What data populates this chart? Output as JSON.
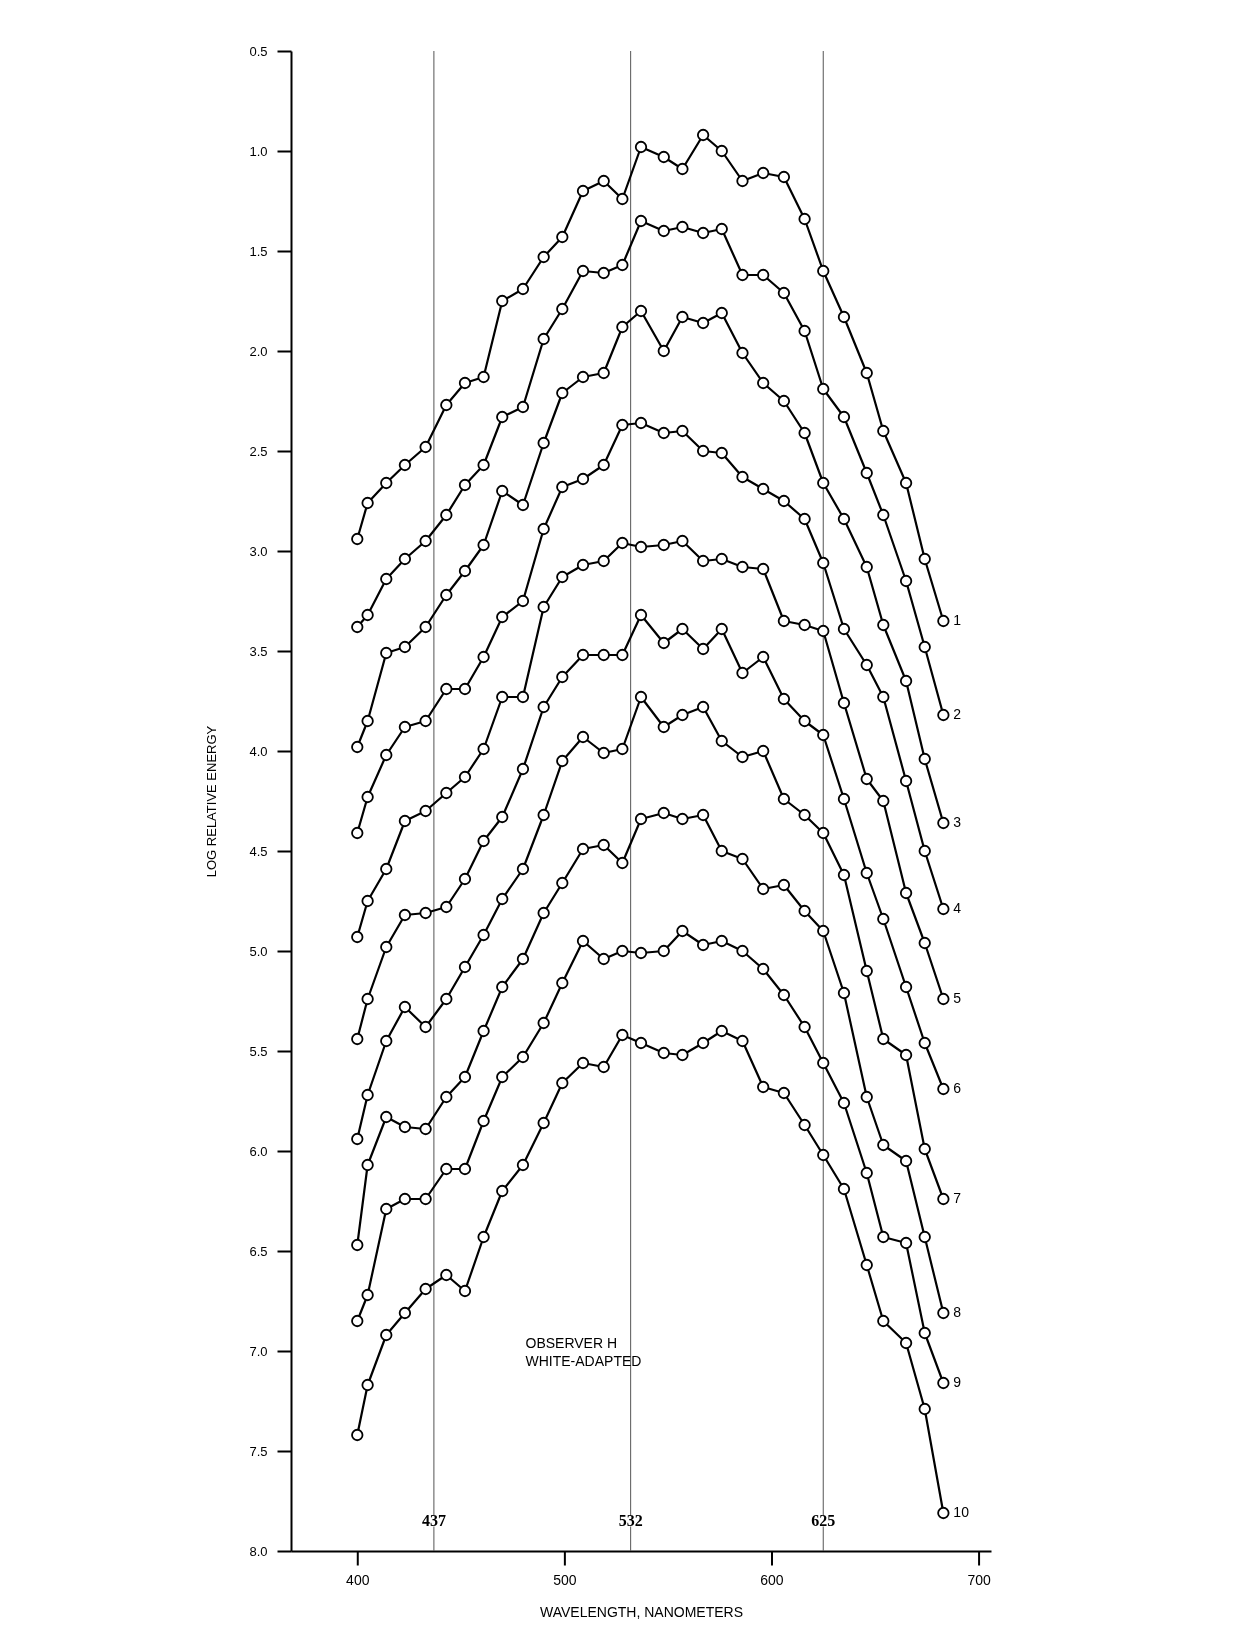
{
  "chart_data": {
    "type": "line",
    "xlabel": "WAVELENGTH, NANOMETERS",
    "ylabel": "LOG RELATIVE ENERGY",
    "annotations": [
      "OBSERVER H",
      "WHITE-ADAPTED"
    ],
    "x": [
      400,
      405,
      414,
      423,
      433,
      443,
      452,
      461,
      470,
      480,
      490,
      499,
      509,
      519,
      528,
      537,
      548,
      557,
      567,
      576,
      586,
      596,
      606,
      616,
      625,
      635,
      646,
      654,
      665,
      674,
      683
    ],
    "series": [
      {
        "name": "1",
        "color": "#000000",
        "values": [
          2.94,
          2.76,
          2.66,
          2.57,
          2.48,
          2.27,
          2.16,
          2.13,
          1.75,
          1.69,
          1.53,
          1.43,
          1.2,
          1.15,
          1.24,
          0.98,
          1.03,
          1.09,
          0.92,
          1.0,
          1.15,
          1.11,
          1.13,
          1.34,
          1.6,
          1.83,
          2.11,
          2.4,
          2.66,
          3.04,
          3.35
        ]
      },
      {
        "name": "2",
        "color": "#000000",
        "values": [
          3.38,
          3.32,
          3.14,
          3.04,
          2.95,
          2.82,
          2.67,
          2.57,
          2.33,
          2.28,
          1.94,
          1.79,
          1.6,
          1.61,
          1.57,
          1.35,
          1.4,
          1.38,
          1.41,
          1.39,
          1.62,
          1.62,
          1.71,
          1.9,
          2.19,
          2.33,
          2.61,
          2.82,
          3.15,
          3.48,
          3.82
        ]
      },
      {
        "name": "3",
        "color": "#000000",
        "values": [
          3.98,
          3.85,
          3.51,
          3.48,
          3.38,
          3.22,
          3.1,
          2.97,
          2.7,
          2.77,
          2.46,
          2.21,
          2.13,
          2.11,
          1.88,
          1.8,
          2.0,
          1.83,
          1.86,
          1.81,
          2.01,
          2.16,
          2.25,
          2.41,
          2.66,
          2.84,
          3.08,
          3.37,
          3.65,
          4.04,
          4.36
        ]
      },
      {
        "name": "4",
        "color": "#000000",
        "values": [
          4.41,
          4.23,
          4.02,
          3.88,
          3.85,
          3.69,
          3.69,
          3.53,
          3.33,
          3.25,
          2.89,
          2.68,
          2.64,
          2.57,
          2.37,
          2.36,
          2.41,
          2.4,
          2.5,
          2.51,
          2.63,
          2.69,
          2.75,
          2.84,
          3.06,
          3.39,
          3.57,
          3.73,
          4.15,
          4.5,
          4.79
        ]
      },
      {
        "name": "5",
        "color": "#000000",
        "values": [
          4.93,
          4.75,
          4.59,
          4.35,
          4.3,
          4.21,
          4.13,
          3.99,
          3.73,
          3.73,
          3.28,
          3.13,
          3.07,
          3.05,
          2.96,
          2.98,
          2.97,
          2.95,
          3.05,
          3.04,
          3.08,
          3.09,
          3.35,
          3.37,
          3.4,
          3.76,
          4.14,
          4.25,
          4.71,
          4.96,
          5.24
        ]
      },
      {
        "name": "6",
        "color": "#000000",
        "values": [
          5.44,
          5.24,
          4.98,
          4.82,
          4.81,
          4.78,
          4.64,
          4.45,
          4.33,
          4.09,
          3.78,
          3.63,
          3.52,
          3.52,
          3.52,
          3.32,
          3.46,
          3.39,
          3.49,
          3.39,
          3.61,
          3.53,
          3.74,
          3.85,
          3.92,
          4.24,
          4.61,
          4.84,
          5.18,
          5.46,
          5.69
        ]
      },
      {
        "name": "7",
        "color": "#000000",
        "values": [
          5.94,
          5.72,
          5.45,
          5.28,
          5.38,
          5.24,
          5.08,
          4.92,
          4.74,
          4.59,
          4.32,
          4.05,
          3.93,
          4.01,
          3.99,
          3.73,
          3.88,
          3.82,
          3.78,
          3.95,
          4.03,
          4.0,
          4.24,
          4.32,
          4.41,
          4.62,
          5.1,
          5.44,
          5.52,
          5.99,
          6.24
        ]
      },
      {
        "name": "8",
        "color": "#000000",
        "values": [
          6.47,
          6.07,
          5.83,
          5.88,
          5.89,
          5.73,
          5.63,
          5.4,
          5.18,
          5.04,
          4.81,
          4.66,
          4.49,
          4.47,
          4.56,
          4.34,
          4.31,
          4.34,
          4.32,
          4.5,
          4.54,
          4.69,
          4.67,
          4.8,
          4.9,
          5.21,
          5.73,
          5.97,
          6.05,
          6.43,
          6.81
        ]
      },
      {
        "name": "9",
        "color": "#000000",
        "values": [
          6.85,
          6.72,
          6.29,
          6.24,
          6.24,
          6.09,
          6.09,
          5.85,
          5.63,
          5.53,
          5.36,
          5.16,
          4.95,
          5.04,
          5.0,
          5.01,
          5.0,
          4.9,
          4.97,
          4.95,
          5.0,
          5.09,
          5.22,
          5.38,
          5.56,
          5.76,
          6.11,
          6.43,
          6.46,
          6.91,
          7.16
        ]
      },
      {
        "name": "10",
        "color": "#000000",
        "values": [
          7.42,
          7.17,
          6.92,
          6.81,
          6.69,
          6.62,
          6.7,
          6.43,
          6.2,
          6.07,
          5.86,
          5.66,
          5.56,
          5.58,
          5.42,
          5.46,
          5.51,
          5.52,
          5.46,
          5.4,
          5.45,
          5.68,
          5.71,
          5.87,
          6.02,
          6.19,
          6.57,
          6.85,
          6.96,
          7.29,
          7.81
        ]
      }
    ],
    "xlim": [
      368,
      706
    ],
    "xticks": [
      400,
      500,
      600,
      700
    ],
    "ylim": [
      8.0,
      0.5
    ],
    "yticks": [
      {
        "value": 0.5,
        "label": "0.5"
      },
      {
        "value": 1,
        "label": "1.0"
      },
      {
        "value": 1.5,
        "label": "1.5"
      },
      {
        "value": 2,
        "label": "2.0"
      },
      {
        "value": 2.5,
        "label": "2.5"
      },
      {
        "value": 3,
        "label": "3.0"
      },
      {
        "value": 3.5,
        "label": "3.5"
      },
      {
        "value": 4,
        "label": "4.0"
      },
      {
        "value": 4.5,
        "label": "4.5"
      },
      {
        "value": 5,
        "label": "5.0"
      },
      {
        "value": 5.5,
        "label": "5.5"
      },
      {
        "value": 6,
        "label": "6.0"
      },
      {
        "value": 6.5,
        "label": "6.5"
      },
      {
        "value": 7,
        "label": "7.0"
      },
      {
        "value": 7.5,
        "label": "7.5"
      },
      {
        "value": 8,
        "label": "8.0"
      }
    ],
    "ref_lines": [
      {
        "axis": "x",
        "value": 437,
        "label": "437",
        "color": "#555555"
      },
      {
        "axis": "x",
        "value": 532,
        "label": "532",
        "color": "#555555"
      },
      {
        "axis": "x",
        "value": 625,
        "label": "625",
        "color": "#555555"
      }
    ],
    "grid": false,
    "legend": false,
    "marker": "circle",
    "line_style": "solid"
  }
}
